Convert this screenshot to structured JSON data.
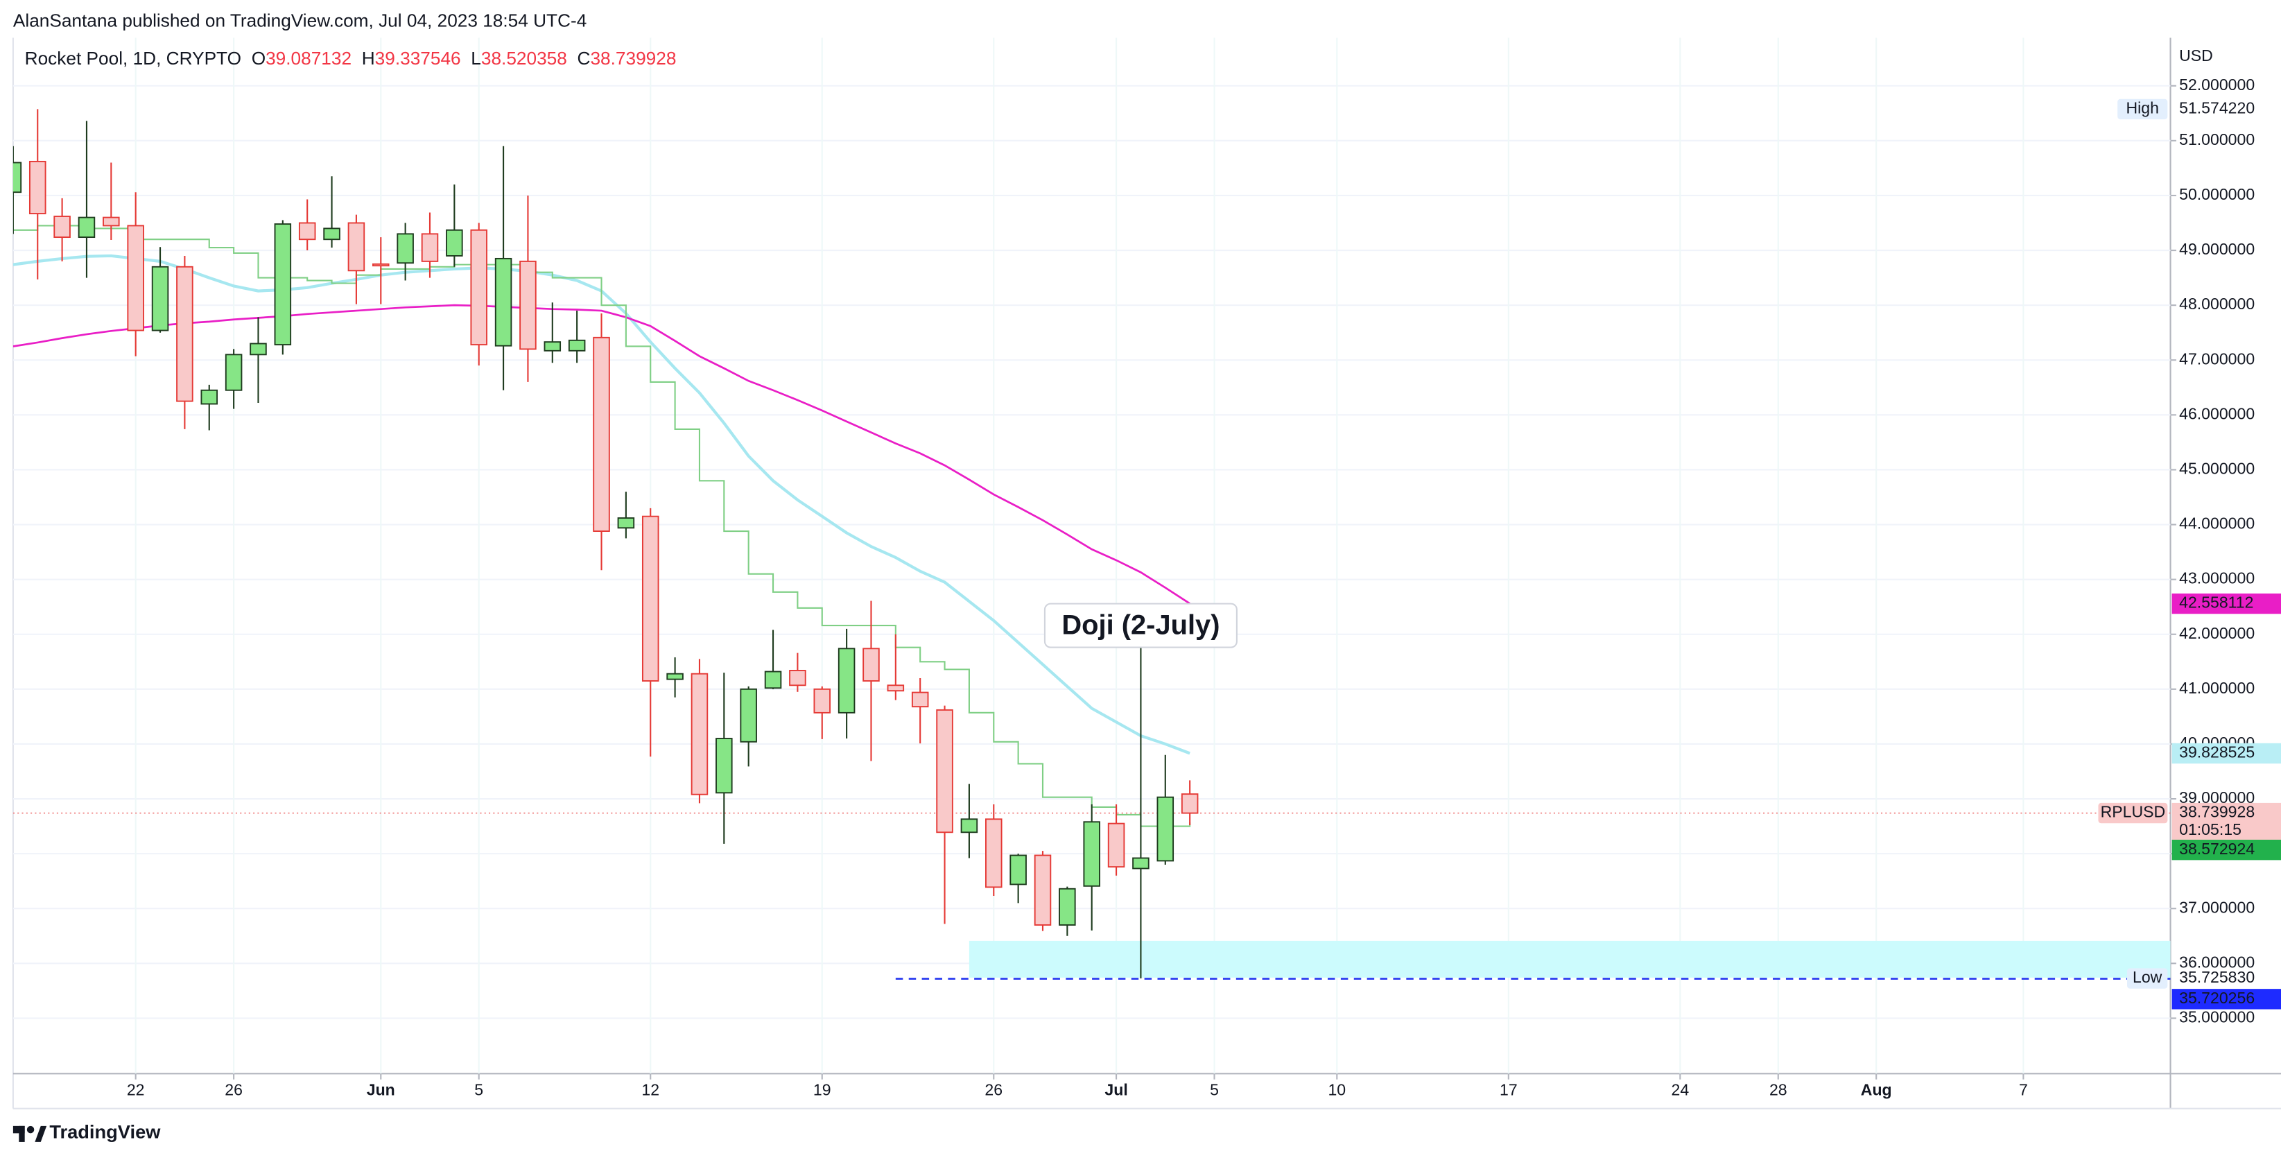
{
  "header": {
    "publisher": "AlanSantana published on TradingView.com, Jul 04, 2023 18:54 UTC-4"
  },
  "footer": {
    "brand": "TradingView"
  },
  "chart_data": {
    "type": "candlestick",
    "title": "Rocket Pool, 1D, CRYPTO",
    "ohlc_labels": [
      "O",
      "H",
      "L",
      "C"
    ],
    "currency": "USD",
    "dates": [
      "2023-05-17",
      "2023-05-18",
      "2023-05-19",
      "2023-05-20",
      "2023-05-21",
      "2023-05-22",
      "2023-05-23",
      "2023-05-24",
      "2023-05-25",
      "2023-05-26",
      "2023-05-27",
      "2023-05-28",
      "2023-05-29",
      "2023-05-30",
      "2023-05-31",
      "2023-06-01",
      "2023-06-02",
      "2023-06-03",
      "2023-06-04",
      "2023-06-05",
      "2023-06-06",
      "2023-06-07",
      "2023-06-08",
      "2023-06-09",
      "2023-06-10",
      "2023-06-11",
      "2023-06-12",
      "2023-06-13",
      "2023-06-14",
      "2023-06-15",
      "2023-06-16",
      "2023-06-17",
      "2023-06-18",
      "2023-06-19",
      "2023-06-20",
      "2023-06-21",
      "2023-06-22",
      "2023-06-23",
      "2023-06-24",
      "2023-06-25",
      "2023-06-26",
      "2023-06-27",
      "2023-06-28",
      "2023-06-29",
      "2023-06-30",
      "2023-07-01",
      "2023-07-02",
      "2023-07-03",
      "2023-07-04"
    ],
    "open": [
      50.06,
      50.62,
      49.62,
      49.24,
      49.6,
      49.45,
      47.54,
      48.7,
      46.2,
      46.45,
      47.1,
      47.28,
      49.5,
      49.2,
      49.5,
      48.75,
      48.77,
      49.3,
      48.9,
      49.37,
      47.26,
      48.8,
      47.17,
      47.17,
      47.41,
      43.94,
      44.15,
      41.18,
      41.28,
      39.11,
      40.04,
      41.02,
      41.34,
      41.0,
      40.57,
      41.74,
      41.07,
      40.94,
      40.62,
      38.39,
      38.63,
      37.44,
      37.97,
      36.7,
      37.41,
      38.55,
      37.73,
      37.87,
      39.087132
    ],
    "high": [
      50.9,
      51.57422,
      49.95,
      51.36,
      50.6,
      50.06,
      49.06,
      48.9,
      46.55,
      47.2,
      47.78,
      49.55,
      49.93,
      50.35,
      49.65,
      49.24,
      49.5,
      49.69,
      50.2,
      49.5,
      50.9,
      50.0,
      48.05,
      47.9,
      47.85,
      44.6,
      44.3,
      41.58,
      41.55,
      41.3,
      41.05,
      42.08,
      41.66,
      41.05,
      42.1,
      42.61,
      42.0,
      41.2,
      40.7,
      39.27,
      38.9,
      38.0,
      38.05,
      37.4,
      38.9,
      38.9,
      41.76,
      39.8,
      39.337546
    ],
    "low": [
      49.3,
      48.47,
      48.8,
      48.5,
      49.19,
      47.07,
      47.5,
      45.74,
      45.72,
      46.11,
      46.22,
      47.1,
      49.0,
      49.05,
      48.02,
      48.02,
      48.45,
      48.5,
      48.7,
      46.9,
      46.45,
      46.6,
      46.95,
      46.95,
      43.17,
      43.75,
      39.77,
      40.85,
      38.92,
      38.18,
      39.59,
      41.0,
      40.95,
      40.09,
      40.1,
      39.69,
      40.8,
      40.01,
      36.72,
      37.92,
      37.23,
      37.1,
      36.59,
      36.5,
      36.6,
      37.6,
      35.72583,
      37.8,
      38.520358
    ],
    "close": [
      50.6,
      49.67,
      49.24,
      49.6,
      49.45,
      47.54,
      48.7,
      46.25,
      46.45,
      47.1,
      47.3,
      49.48,
      49.2,
      49.4,
      48.63,
      48.72,
      49.3,
      48.8,
      49.37,
      47.28,
      48.85,
      47.2,
      47.33,
      47.36,
      43.88,
      44.12,
      41.15,
      41.28,
      39.08,
      40.1,
      41.0,
      41.32,
      41.07,
      40.57,
      41.74,
      41.15,
      40.97,
      40.68,
      38.39,
      38.63,
      37.39,
      37.97,
      36.7,
      37.36,
      38.58,
      37.76,
      37.92,
      39.03,
      38.739928
    ],
    "up_color": "#86e586",
    "up_border": "#1e3b1e",
    "down_color": "#f9c9c9",
    "down_border": "#e53935",
    "series": [
      {
        "color": "#a6e7f0",
        "width": 2,
        "values": [
          48.74,
          48.8,
          48.85,
          48.89,
          48.9,
          48.85,
          48.8,
          48.66,
          48.5,
          48.35,
          48.26,
          48.28,
          48.32,
          48.4,
          48.47,
          48.55,
          48.6,
          48.63,
          48.66,
          48.68,
          48.66,
          48.62,
          48.55,
          48.45,
          48.26,
          47.85,
          47.33,
          46.85,
          46.4,
          45.85,
          45.25,
          44.8,
          44.45,
          44.15,
          43.85,
          43.6,
          43.4,
          43.15,
          42.95,
          42.6,
          42.25,
          41.85,
          41.45,
          41.05,
          40.65,
          40.4,
          40.15,
          40.0,
          39.83
        ]
      },
      {
        "color": "#e91ec6",
        "width": 1.3,
        "values": [
          47.25,
          47.32,
          47.4,
          47.47,
          47.53,
          47.58,
          47.63,
          47.67,
          47.7,
          47.74,
          47.77,
          47.8,
          47.84,
          47.87,
          47.9,
          47.93,
          47.96,
          47.98,
          48.0,
          47.99,
          47.97,
          47.95,
          47.93,
          47.92,
          47.9,
          47.78,
          47.62,
          47.35,
          47.07,
          46.85,
          46.62,
          46.45,
          46.27,
          46.08,
          45.88,
          45.68,
          45.48,
          45.3,
          45.08,
          44.82,
          44.55,
          44.32,
          44.08,
          43.82,
          43.55,
          43.35,
          43.13,
          42.85,
          42.56
        ]
      },
      {
        "color": "#7fcf85",
        "width": 1,
        "step": true,
        "values": [
          49.37,
          49.45,
          49.45,
          49.4,
          49.4,
          49.2,
          49.2,
          49.2,
          49.05,
          48.95,
          48.5,
          48.5,
          48.45,
          48.4,
          48.55,
          48.66,
          48.66,
          48.7,
          48.74,
          48.74,
          48.74,
          48.6,
          48.5,
          48.5,
          48.0,
          47.25,
          46.6,
          45.74,
          44.8,
          43.88,
          43.1,
          42.77,
          42.48,
          42.16,
          42.16,
          42.16,
          41.76,
          41.5,
          41.36,
          40.57,
          40.04,
          39.64,
          39.03,
          39.03,
          38.85,
          38.71,
          38.5,
          38.5,
          38.57
        ]
      }
    ],
    "xlim": [
      "2023-05-17",
      "2023-08-13"
    ],
    "xticks": [
      {
        "value": "2023-05-22",
        "label": "22"
      },
      {
        "value": "2023-05-26",
        "label": "26"
      },
      {
        "value": "2023-06-01",
        "label": "Jun"
      },
      {
        "value": "2023-06-05",
        "label": "5"
      },
      {
        "value": "2023-06-12",
        "label": "12"
      },
      {
        "value": "2023-06-19",
        "label": "19"
      },
      {
        "value": "2023-06-26",
        "label": "26"
      },
      {
        "value": "2023-07-01",
        "label": "Jul"
      },
      {
        "value": "2023-07-05",
        "label": "5"
      },
      {
        "value": "2023-07-10",
        "label": "10"
      },
      {
        "value": "2023-07-17",
        "label": "17"
      },
      {
        "value": "2023-07-24",
        "label": "24"
      },
      {
        "value": "2023-07-28",
        "label": "28"
      },
      {
        "value": "2023-08-01",
        "label": "Aug"
      },
      {
        "value": "2023-08-07",
        "label": "7"
      }
    ],
    "ylim": [
      33.99,
      52.875
    ],
    "yticks": [
      {
        "value": 35,
        "label": "35.000000"
      },
      {
        "value": 36,
        "label": "36.000000"
      },
      {
        "value": 37,
        "label": "37.000000"
      },
      {
        "value": 38,
        "label": "38.000000"
      },
      {
        "value": 39,
        "label": "39.000000"
      },
      {
        "value": 40,
        "label": "40.000000"
      },
      {
        "value": 41,
        "label": "41.000000"
      },
      {
        "value": 42,
        "label": "42.000000"
      },
      {
        "value": 43,
        "label": "43.000000"
      },
      {
        "value": 44,
        "label": "44.000000"
      },
      {
        "value": 45,
        "label": "45.000000"
      },
      {
        "value": 46,
        "label": "46.000000"
      },
      {
        "value": 47,
        "label": "47.000000"
      },
      {
        "value": 48,
        "label": "48.000000"
      },
      {
        "value": 49,
        "label": "49.000000"
      },
      {
        "value": 50,
        "label": "50.000000"
      },
      {
        "value": 51,
        "label": "51.000000"
      },
      {
        "value": 52,
        "label": "52.000000"
      }
    ],
    "grid": true,
    "price_labels": [
      {
        "name": "High",
        "value": 51.57422,
        "label": "51.574220"
      },
      {
        "value": 42.558112,
        "label": "42.558112",
        "color": "#e91ec6",
        "text_color": "#ffffff"
      },
      {
        "value": 39.828525,
        "label": "39.828525",
        "color": "#b9eef5",
        "text_color": "#131722"
      },
      {
        "name": "RPLUSD",
        "value": 38.739928,
        "label": "38.739928",
        "countdown": "01:05:15",
        "color": "#f9c9c9",
        "text_color": "#131722"
      },
      {
        "value": 38.572924,
        "label": "38.572924",
        "color": "#22b14c",
        "text_color": "#ffffff"
      },
      {
        "name": "Low",
        "value": 35.72583,
        "label": "35.725830"
      },
      {
        "value": 35.720256,
        "label": "35.720256",
        "color": "#1e2bff",
        "text_color": "#ffffff"
      }
    ],
    "zone": {
      "x": "2023-06-25",
      "y": [
        35.74,
        36.41
      ],
      "color": "#ccfbfd"
    },
    "hline": {
      "x": "2023-06-22",
      "value": 35.720256,
      "color": "#2a3bf0"
    },
    "annotation": {
      "text": "Doji (2-July)",
      "x": "2023-07-02",
      "y": 42.16
    }
  }
}
